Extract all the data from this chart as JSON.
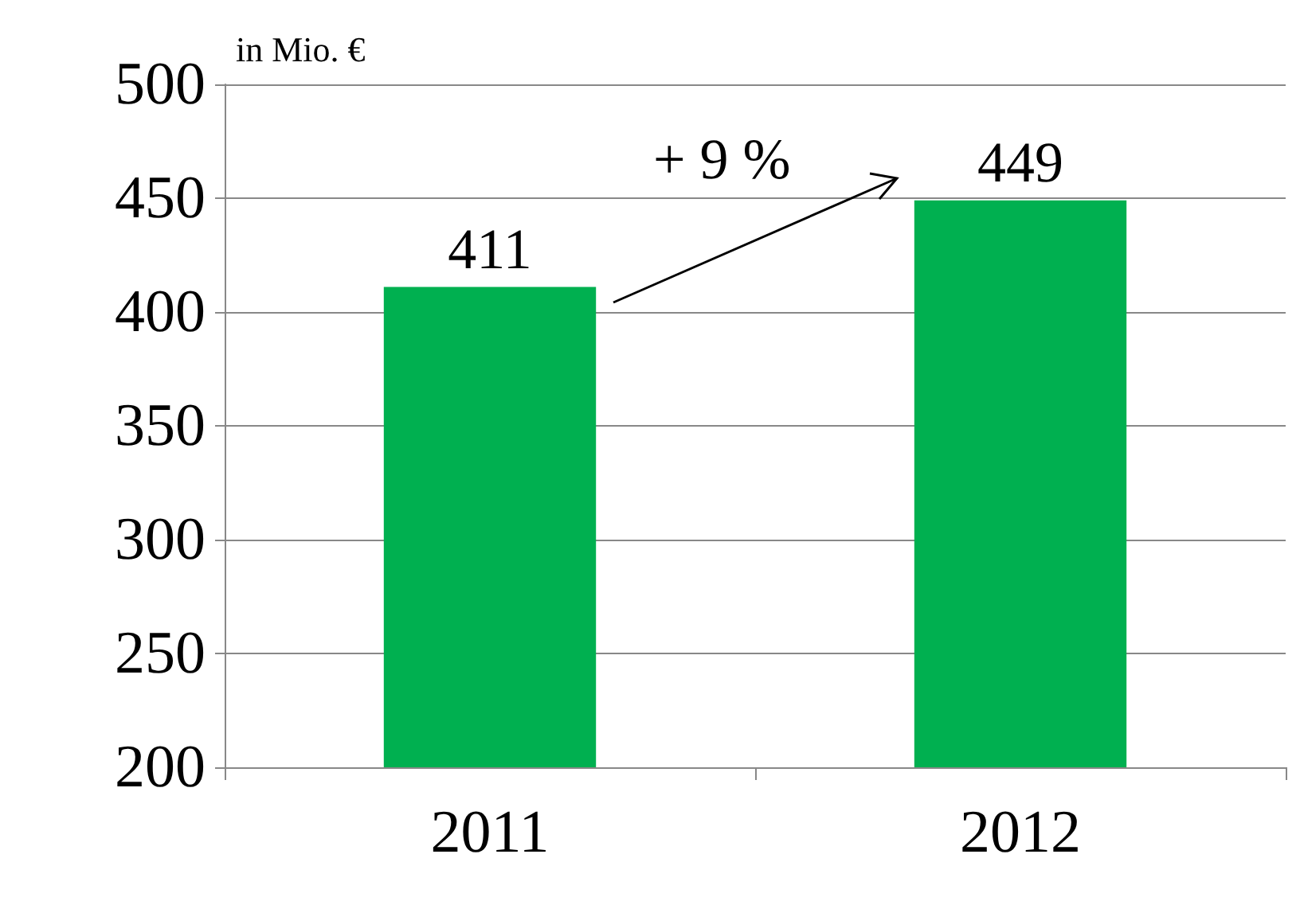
{
  "chart_data": {
    "type": "bar",
    "categories": [
      "2011",
      "2012"
    ],
    "values": [
      411,
      449
    ],
    "color": "#00b050",
    "ylim": [
      200,
      500
    ],
    "yticks": [
      200,
      250,
      300,
      350,
      400,
      450,
      500
    ],
    "grid": "y",
    "data_labels": true,
    "annotations": [
      "in Mio. €",
      "+ 9 %"
    ]
  }
}
